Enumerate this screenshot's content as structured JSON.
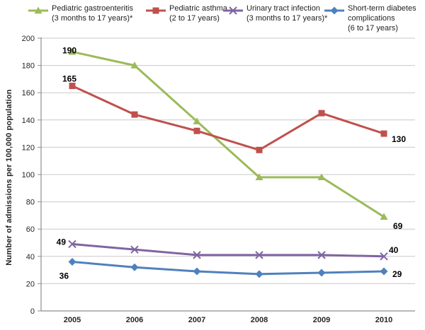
{
  "legend": {
    "items": [
      {
        "lines": [
          "Pediatric gastroenteritis",
          "(3 months to 17 years)*"
        ]
      },
      {
        "lines": [
          "Pediatric asthma",
          "(2 to 17 years)"
        ]
      },
      {
        "lines": [
          "Urinary tract infection",
          "(3 months to 17 years)*"
        ]
      },
      {
        "lines": [
          "Short-term diabetes",
          "complications",
          "(6 to 17  years)"
        ]
      }
    ]
  },
  "chart_data": {
    "type": "line",
    "title": "",
    "x": [
      "2005",
      "2006",
      "2007",
      "2008",
      "2009",
      "2010"
    ],
    "xlabel": "",
    "ylabel": "Number of admissions  per 100,000 population",
    "ylim": [
      0,
      200
    ],
    "yticks": [
      0,
      20,
      40,
      60,
      80,
      100,
      120,
      140,
      160,
      180,
      200
    ],
    "grid": true,
    "legend_position": "top",
    "colors": {
      "gastroenteritis": "#9BBB59",
      "asthma": "#C0504D",
      "uti": "#8064A2",
      "diabetes": "#4F81BD",
      "gridline": "#C9C9C9",
      "axis": "#8E8E8E"
    },
    "series": [
      {
        "name": "Pediatric gastroenteritis (3 months to 17 years)*",
        "color": "#9BBB59",
        "marker": "triangle",
        "values": [
          190,
          180,
          139,
          98,
          98,
          69
        ],
        "point_labels": [
          "190",
          "",
          "",
          "",
          "",
          "69"
        ]
      },
      {
        "name": "Pediatric asthma (2 to 17 years)",
        "color": "#C0504D",
        "marker": "square",
        "values": [
          165,
          144,
          132,
          118,
          145,
          130
        ],
        "point_labels": [
          "165",
          "",
          "",
          "",
          "",
          "130"
        ]
      },
      {
        "name": "Urinary tract infection (3 months to 17 years)*",
        "color": "#8064A2",
        "marker": "x",
        "values": [
          49,
          45,
          41,
          41,
          41,
          40
        ],
        "point_labels": [
          "49",
          "",
          "",
          "",
          "",
          "40"
        ]
      },
      {
        "name": "Short-term diabetes complications (6 to 17 years)",
        "color": "#4F81BD",
        "marker": "diamond",
        "values": [
          36,
          32,
          29,
          27,
          28,
          29
        ],
        "point_labels": [
          "36",
          "",
          "",
          "",
          "",
          "29"
        ]
      }
    ]
  }
}
